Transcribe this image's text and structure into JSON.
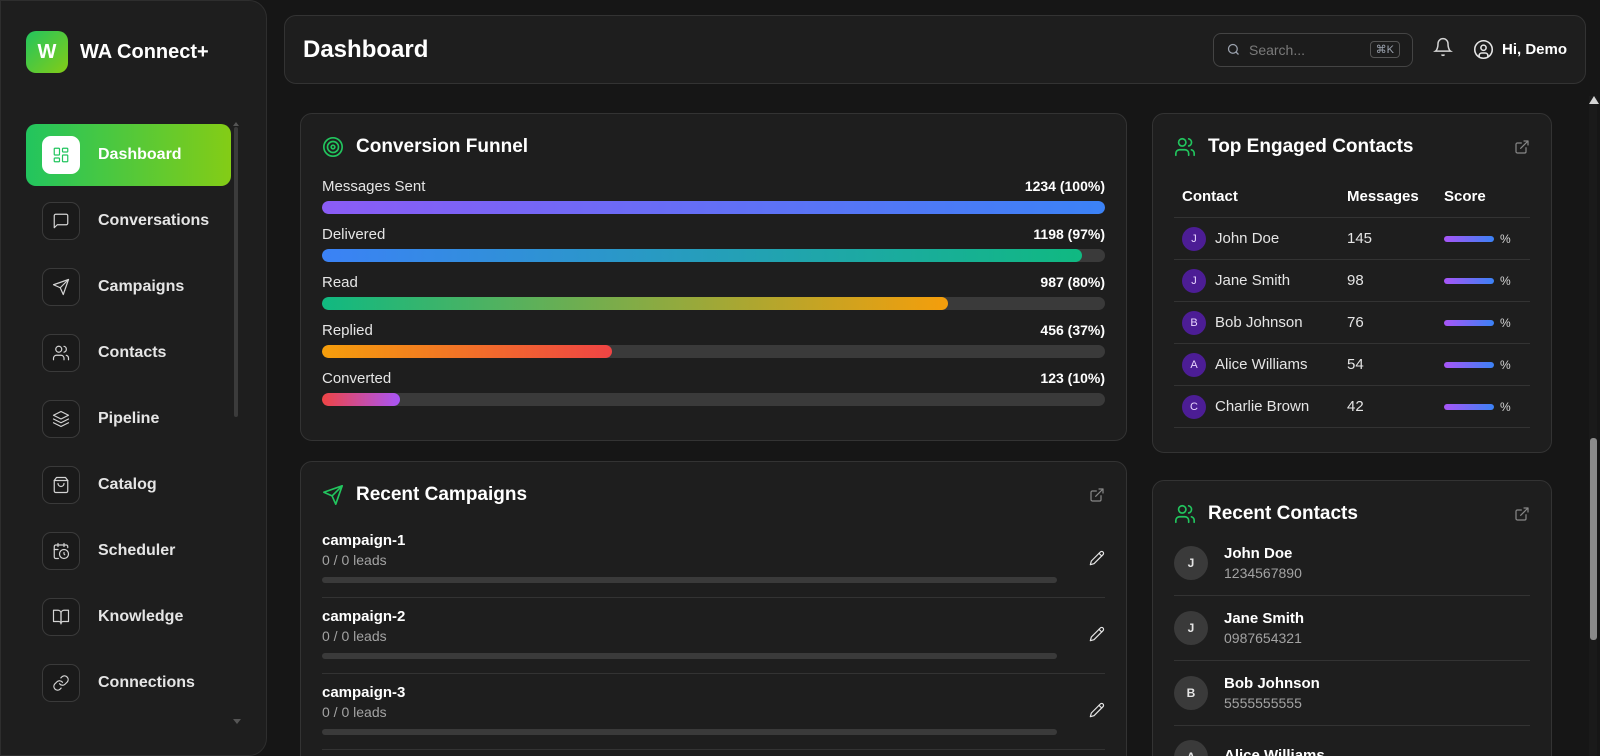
{
  "brand": {
    "logo_letter": "W",
    "name": "WA Connect+"
  },
  "sidebar": {
    "items": [
      {
        "label": "Dashboard",
        "icon": "dashboard-icon",
        "active": true
      },
      {
        "label": "Conversations",
        "icon": "message-icon"
      },
      {
        "label": "Campaigns",
        "icon": "send-icon"
      },
      {
        "label": "Contacts",
        "icon": "users-icon"
      },
      {
        "label": "Pipeline",
        "icon": "layers-icon"
      },
      {
        "label": "Catalog",
        "icon": "shopping-bag-icon"
      },
      {
        "label": "Scheduler",
        "icon": "calendar-clock-icon"
      },
      {
        "label": "Knowledge",
        "icon": "book-icon"
      },
      {
        "label": "Connections",
        "icon": "link-icon"
      }
    ]
  },
  "header": {
    "title": "Dashboard",
    "search_placeholder": "Search...",
    "search_shortcut": "⌘K",
    "greeting": "Hi, Demo"
  },
  "funnel": {
    "title": "Conversion Funnel",
    "rows": [
      {
        "label": "Messages Sent",
        "value": "1234 (100%)",
        "percent": 100,
        "gradient": "linear-gradient(90deg,#8b5cf6,#3b82f6)"
      },
      {
        "label": "Delivered",
        "value": "1198 (97%)",
        "percent": 97,
        "gradient": "linear-gradient(90deg,#3b82f6,#10b981)"
      },
      {
        "label": "Read",
        "value": "987 (80%)",
        "percent": 80,
        "gradient": "linear-gradient(90deg,#10b981,#f59e0b)"
      },
      {
        "label": "Replied",
        "value": "456 (37%)",
        "percent": 37,
        "gradient": "linear-gradient(90deg,#f59e0b,#ef4444)"
      },
      {
        "label": "Converted",
        "value": "123 (10%)",
        "percent": 10,
        "gradient": "linear-gradient(90deg,#ef4444,#a855f7)"
      }
    ]
  },
  "campaigns": {
    "title": "Recent Campaigns",
    "items": [
      {
        "name": "campaign-1",
        "leads": "0 / 0 leads"
      },
      {
        "name": "campaign-2",
        "leads": "0 / 0 leads"
      },
      {
        "name": "campaign-3",
        "leads": "0 / 0 leads"
      }
    ]
  },
  "engaged": {
    "title": "Top Engaged Contacts",
    "columns": [
      "Contact",
      "Messages",
      "Score"
    ],
    "rows": [
      {
        "initial": "J",
        "name": "John Doe",
        "messages": "145",
        "score": "%"
      },
      {
        "initial": "J",
        "name": "Jane Smith",
        "messages": "98",
        "score": "%"
      },
      {
        "initial": "B",
        "name": "Bob Johnson",
        "messages": "76",
        "score": "%"
      },
      {
        "initial": "A",
        "name": "Alice Williams",
        "messages": "54",
        "score": "%"
      },
      {
        "initial": "C",
        "name": "Charlie Brown",
        "messages": "42",
        "score": "%"
      }
    ]
  },
  "recent_contacts": {
    "title": "Recent Contacts",
    "items": [
      {
        "initial": "J",
        "name": "John Doe",
        "phone": "1234567890"
      },
      {
        "initial": "J",
        "name": "Jane Smith",
        "phone": "0987654321"
      },
      {
        "initial": "B",
        "name": "Bob Johnson",
        "phone": "5555555555"
      },
      {
        "initial": "A",
        "name": "Alice Williams",
        "phone": ""
      }
    ]
  },
  "colors": {
    "accent": "#22c55e",
    "accent2": "#84cc16",
    "background": "#161616",
    "card": "#1e1e1e"
  }
}
